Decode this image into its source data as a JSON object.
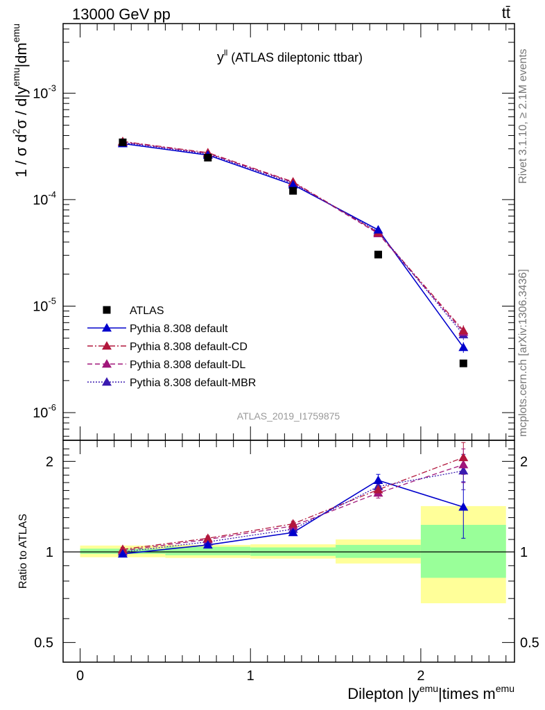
{
  "header": {
    "left": "13000 GeV pp",
    "right": "tt̄"
  },
  "side_labels": {
    "rivet": "Rivet 3.1.10, ≥ 2.1M events",
    "mcplots": "mcplots.cern.ch [arXiv:1306.3436]"
  },
  "watermark": "ATLAS_2019_I1759875",
  "colors": {
    "data": "#000000",
    "default": "#0000cc",
    "cd": "#b2163c",
    "dl": "#a0167a",
    "mbr": "#3a1ab0",
    "band_inner": "#99ff99",
    "band_outer": "#ffff99"
  },
  "chart_data": [
    {
      "type": "scatter",
      "panel": "main",
      "title": "y^ll (ATLAS dileptonic ttbar)",
      "title_main": "y",
      "title_sup": "ll",
      "title_rest": " (ATLAS dileptonic ttbar)",
      "ylabel": "1 / σ d²σ / d|y^emu|dm^emu",
      "ylabel_parts": [
        "1 / σ  d",
        "2",
        "σ / d|y",
        "emu",
        "|dm",
        "emu"
      ],
      "yscale": "log",
      "ylim": [
        5.5e-07,
        0.0045
      ],
      "xlim": [
        -0.1,
        2.55
      ],
      "y_ticks": [
        {
          "v": 0.001,
          "base": "10",
          "exp": "-3"
        },
        {
          "v": 0.0001,
          "base": "10",
          "exp": "-4"
        },
        {
          "v": 1e-05,
          "base": "10",
          "exp": "-5"
        },
        {
          "v": 1e-06,
          "base": "10",
          "exp": "-6"
        }
      ],
      "x_bins": [
        [
          0,
          0.5
        ],
        [
          0.5,
          1.0
        ],
        [
          1.0,
          1.5
        ],
        [
          1.5,
          2.0
        ],
        [
          2.0,
          2.5
        ]
      ],
      "x": [
        0.25,
        0.75,
        1.25,
        1.75,
        2.25
      ],
      "legend_position": "lower-left",
      "series": [
        {
          "name": "ATLAS",
          "key": "data",
          "marker": "square",
          "line": "none",
          "values": [
            0.000345,
            0.000248,
            0.000121,
            3.05e-05,
            2.9e-06
          ]
        },
        {
          "name": "Pythia 8.308 default",
          "key": "default",
          "marker": "triangle",
          "line": "solid",
          "values": [
            0.000336,
            0.000262,
            0.000138,
            5.2e-05,
            4.1e-06
          ]
        },
        {
          "name": "Pythia 8.308 default-CD",
          "key": "cd",
          "marker": "triangle",
          "line": "dashdot",
          "values": [
            0.000352,
            0.000276,
            0.000147,
            4.9e-05,
            5.9e-06
          ]
        },
        {
          "name": "Pythia 8.308 default-DL",
          "key": "dl",
          "marker": "triangle",
          "line": "dashed",
          "values": [
            0.000348,
            0.000272,
            0.000145,
            4.8e-05,
            5.7e-06
          ]
        },
        {
          "name": "Pythia 8.308 default-MBR",
          "key": "mbr",
          "marker": "triangle",
          "line": "dotted",
          "values": [
            0.000344,
            0.000268,
            0.000142,
            5e-05,
            5.4e-06
          ]
        }
      ]
    },
    {
      "type": "scatter",
      "panel": "ratio",
      "ylabel": "Ratio to ATLAS",
      "xlabel": "Dilepton |y^emu|times m^emu",
      "xlabel_parts": [
        "Dilepton |y",
        "emu",
        "|times m",
        "emu"
      ],
      "yscale": "log",
      "ylim": [
        0.43,
        2.35
      ],
      "xlim": [
        -0.1,
        2.55
      ],
      "y_ticks": [
        {
          "v": 0.5,
          "label": "0.5"
        },
        {
          "v": 1,
          "label": "1"
        },
        {
          "v": 2,
          "label": "2"
        }
      ],
      "x_ticks": [
        {
          "v": 0,
          "label": "0"
        },
        {
          "v": 1,
          "label": "1"
        },
        {
          "v": 2,
          "label": "2"
        }
      ],
      "x": [
        0.25,
        0.75,
        1.25,
        1.75,
        2.25
      ],
      "bands": {
        "bins": [
          [
            0,
            0.5
          ],
          [
            0.5,
            1.0
          ],
          [
            1.0,
            1.5
          ],
          [
            1.5,
            2.0
          ],
          [
            2.0,
            2.5
          ]
        ],
        "inner": [
          [
            0.985,
            1.025
          ],
          [
            0.975,
            1.04
          ],
          [
            0.97,
            1.035
          ],
          [
            0.955,
            1.055
          ],
          [
            0.82,
            1.23
          ]
        ],
        "outer": [
          [
            0.96,
            1.05
          ],
          [
            0.955,
            1.055
          ],
          [
            0.95,
            1.06
          ],
          [
            0.915,
            1.1
          ],
          [
            0.675,
            1.42
          ]
        ]
      },
      "series": [
        {
          "name": "Pythia 8.308 default",
          "key": "default",
          "values": [
            0.985,
            1.055,
            1.16,
            1.73,
            1.41
          ],
          "err": [
            0.015,
            0.02,
            0.025,
            0.08,
            0.3
          ]
        },
        {
          "name": "Pythia 8.308 default-CD",
          "key": "cd",
          "values": [
            1.02,
            1.11,
            1.24,
            1.61,
            2.06
          ],
          "err": [
            0.015,
            0.02,
            0.025,
            0.06,
            0.25
          ]
        },
        {
          "name": "Pythia 8.308 default-DL",
          "key": "dl",
          "values": [
            1.01,
            1.1,
            1.22,
            1.57,
            1.95
          ],
          "err": [
            0.015,
            0.02,
            0.025,
            0.06,
            0.25
          ]
        },
        {
          "name": "Pythia 8.308 default-MBR",
          "key": "mbr",
          "values": [
            1.0,
            1.08,
            1.19,
            1.65,
            1.86
          ],
          "err": [
            0.015,
            0.02,
            0.025,
            0.06,
            0.25
          ]
        }
      ]
    }
  ]
}
